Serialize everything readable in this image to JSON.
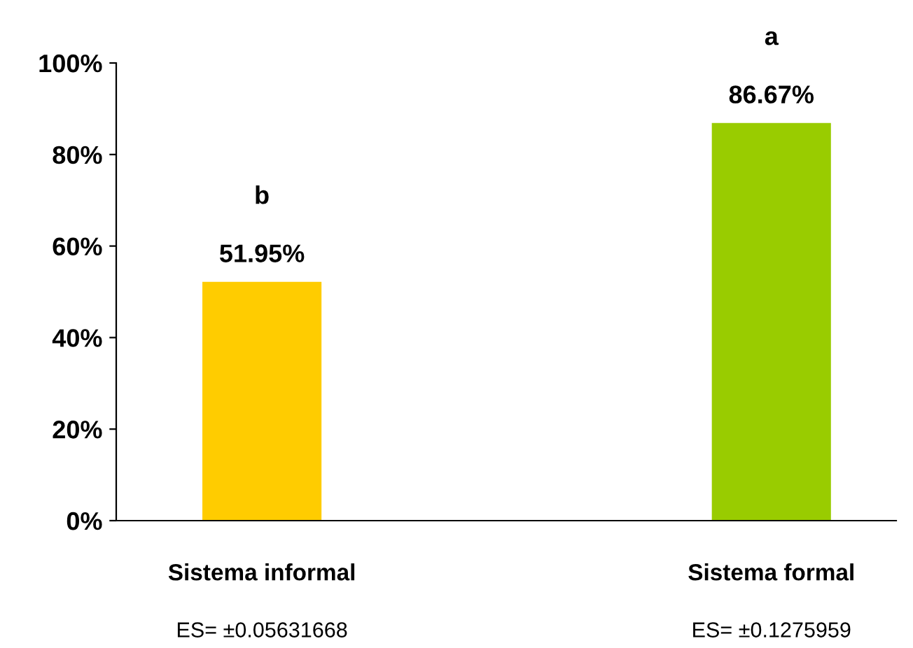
{
  "chart_data": {
    "type": "bar",
    "categories": [
      "Sistema informal",
      "Sistema formal"
    ],
    "values": [
      51.95,
      86.67
    ],
    "colors": [
      "#ffcc00",
      "#99cc00"
    ],
    "value_labels": [
      "51.95%",
      "86.67%"
    ],
    "ylim": [
      0,
      100
    ],
    "yticks": [
      {
        "value": 0,
        "label": "0%"
      },
      {
        "value": 20,
        "label": "20%"
      },
      {
        "value": 40,
        "label": "40%"
      },
      {
        "value": 60,
        "label": "60%"
      },
      {
        "value": 80,
        "label": "80%"
      },
      {
        "value": 100,
        "label": "100%"
      }
    ],
    "annotations": [
      "b",
      "a",
      "ES= ±0.05631668",
      "ES= ±0.1275959"
    ],
    "grid": false,
    "legend": false
  }
}
